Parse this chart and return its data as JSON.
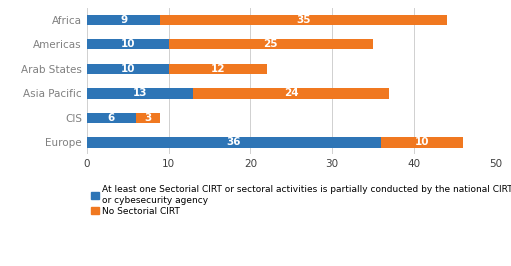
{
  "categories": [
    "Africa",
    "Americas",
    "Arab States",
    "Asia Pacific",
    "CIS",
    "Europe"
  ],
  "blue_values": [
    9,
    10,
    10,
    13,
    6,
    36
  ],
  "orange_values": [
    35,
    25,
    12,
    24,
    3,
    10
  ],
  "blue_color": "#2e75b6",
  "orange_color": "#f07820",
  "xlim": [
    0,
    50
  ],
  "xticks": [
    0,
    10,
    20,
    30,
    40,
    50
  ],
  "legend_blue": "At least one Sectorial CIRT or sectoral activities is partially conducted by the national CIRT\nor cybesecurity agency",
  "legend_orange": "No Sectorial CIRT",
  "bar_height": 0.42,
  "label_fontsize": 7.5,
  "tick_fontsize": 7.5,
  "legend_fontsize": 6.5,
  "background_color": "#ffffff",
  "ytick_color": "#808080",
  "grid_color": "#d0d0d0"
}
